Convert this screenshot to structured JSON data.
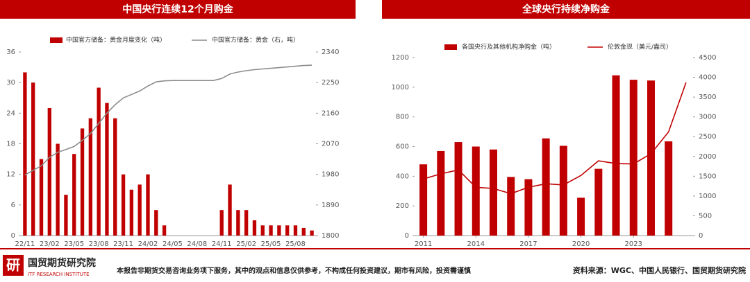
{
  "chart_data": [
    {
      "type": "combo",
      "title": "中国央行连续12个月购金",
      "categories": [
        "22/11",
        null,
        null,
        "23/02",
        null,
        null,
        "23/05",
        null,
        null,
        "23/08",
        null,
        null,
        "23/11",
        null,
        null,
        "24/02",
        null,
        null,
        "24/05",
        null,
        null,
        "24/08",
        null,
        null,
        "24/11",
        null,
        null,
        "25/02",
        null,
        null,
        "25/05",
        null,
        null,
        "25/08",
        null,
        null
      ],
      "series": [
        {
          "name": "中国官方储备：黄金月度变化（吨）",
          "type": "bar",
          "color": "#c00000",
          "values": [
            32,
            30,
            15,
            25,
            18,
            8,
            16,
            21,
            23,
            29,
            26,
            23,
            12,
            9,
            10,
            12,
            5,
            2,
            0,
            0,
            0,
            0,
            0,
            0,
            5,
            10,
            5,
            5,
            3,
            2,
            2,
            2,
            2,
            2,
            1.5,
            1
          ]
        },
        {
          "name": "中国官方储备：黄金（右，吨）",
          "type": "line",
          "axis": "y2",
          "color": "#8c8c8c",
          "values": [
            1978,
            1992,
            2005,
            2030,
            2045,
            2053,
            2062,
            2080,
            2100,
            2130,
            2160,
            2185,
            2205,
            2215,
            2225,
            2240,
            2252,
            2255,
            2256,
            2256,
            2256,
            2256,
            2256,
            2256,
            2262,
            2275,
            2281,
            2285,
            2288,
            2290,
            2292,
            2294,
            2296,
            2298,
            2300,
            2301
          ]
        }
      ],
      "ylim": [
        0,
        36
      ],
      "yticks": [
        0,
        6,
        12,
        18,
        24,
        30,
        36
      ],
      "y2lim": [
        1800,
        2340
      ],
      "y2ticks": [
        1800,
        1890,
        1980,
        2070,
        2160,
        2250,
        2340
      ]
    },
    {
      "type": "combo",
      "title": "全球央行持续净购金",
      "series": [
        {
          "name": "各国央行及其他机构净购金（吨）",
          "type": "bar",
          "color": "#c00000",
          "x": [
            2011,
            2012,
            2013,
            2014,
            2015,
            2016,
            2017,
            2018,
            2019,
            2020,
            2021,
            2022,
            2023,
            2024,
            2025
          ],
          "values": [
            480,
            570,
            630,
            600,
            580,
            395,
            380,
            655,
            605,
            255,
            450,
            1080,
            1050,
            1045,
            635
          ]
        },
        {
          "name": "伦敦金现（美元/盎司）",
          "type": "line",
          "axis": "y2",
          "color": "#c00000",
          "x": [
            2011,
            2012,
            2013,
            2014,
            2015,
            2016,
            2017,
            2018,
            2019,
            2020,
            2021,
            2022,
            2023,
            2024,
            2025,
            2026
          ],
          "values": [
            1430,
            1560,
            1660,
            1220,
            1190,
            1060,
            1220,
            1310,
            1280,
            1520,
            1890,
            1820,
            1810,
            2070,
            2620,
            3870
          ]
        }
      ],
      "xlim": [
        2010.5,
        2026.4
      ],
      "xticks": [
        2011,
        2014,
        2017,
        2020,
        2023
      ],
      "ylim": [
        0,
        1200
      ],
      "yticks": [
        0,
        200,
        400,
        600,
        800,
        1000,
        1200
      ],
      "y2lim": [
        0,
        4500
      ],
      "y2ticks": [
        0,
        500,
        1000,
        1500,
        2000,
        2500,
        3000,
        3500,
        4000,
        4500
      ]
    }
  ],
  "footer": {
    "logo": "研",
    "org": "国贸期货研究院",
    "org_en": "ITF RESEARCH INSTITUTE",
    "disclaimer": "本报告非期货交易咨询业务项下服务，其中的观点和信息仅供参考，不构成任何投资建议，期市有风险，投资需谨慎",
    "source": "资料来源：WGC、中国人民银行、国贸期货研究院"
  }
}
